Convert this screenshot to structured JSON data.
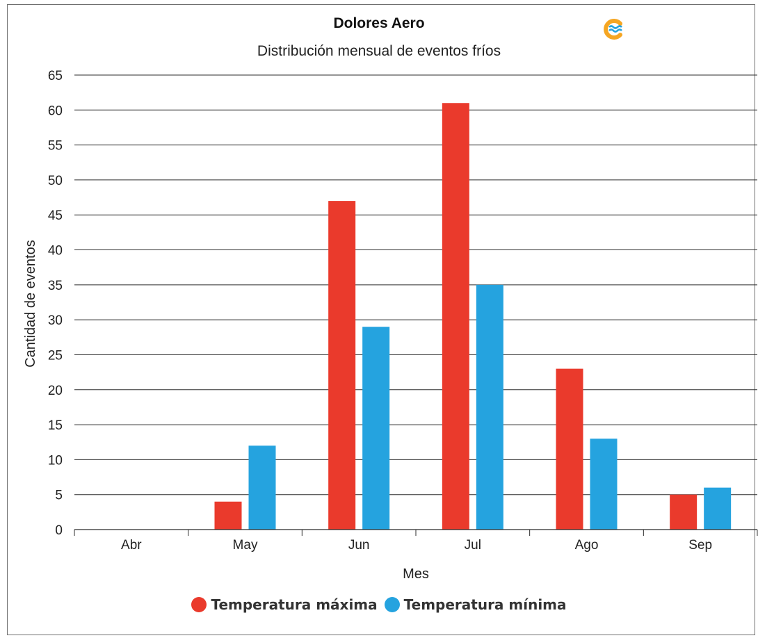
{
  "chart_data": {
    "type": "bar",
    "title": "Dolores Aero",
    "subtitle": "Distribución mensual de eventos fríos",
    "xlabel": "Mes",
    "ylabel": "Cantidad de eventos",
    "categories": [
      "Abr",
      "May",
      "Jun",
      "Jul",
      "Ago",
      "Sep"
    ],
    "series": [
      {
        "name": "Temperatura máxima",
        "color": "#ea3a2c",
        "values": [
          0,
          4,
          47,
          61,
          23,
          5
        ]
      },
      {
        "name": "Temperatura mínima",
        "color": "#25a3df",
        "values": [
          0,
          12,
          29,
          35,
          13,
          6
        ]
      }
    ],
    "ylim": [
      0,
      65
    ],
    "yticks": [
      0,
      5,
      10,
      15,
      20,
      25,
      30,
      35,
      40,
      45,
      50,
      55,
      60,
      65
    ],
    "grid": true,
    "legend_position": "bottom"
  },
  "logo": {
    "icon": "wave-logo-icon",
    "colors": [
      "#f5a623",
      "#25a3df"
    ]
  }
}
